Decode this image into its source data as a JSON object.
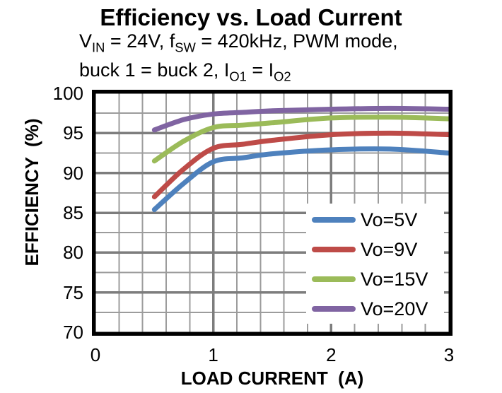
{
  "header": {
    "title": "Efficiency vs. Load Current",
    "subtitle_line1_parts": [
      {
        "t": "V"
      },
      {
        "t": "IN",
        "sub": true
      },
      {
        "t": " = 24V, f"
      },
      {
        "t": "SW",
        "sub": true
      },
      {
        "t": " = 420kHz, PWM mode,"
      }
    ],
    "subtitle_line2_parts": [
      {
        "t": "buck 1 = buck 2, I"
      },
      {
        "t": "O1",
        "sub": true
      },
      {
        "t": " = I"
      },
      {
        "t": "O2",
        "sub": true
      }
    ]
  },
  "chart_data": {
    "type": "line",
    "title": "Efficiency vs. Load Current",
    "subtitle": "VIN = 24V, fSW = 420kHz, PWM mode, buck 1 = buck 2, IO1 = IO2",
    "xlabel": "LOAD CURRENT  (A)",
    "ylabel": "EFFICIENCY  (%)",
    "xlim": [
      0,
      3
    ],
    "ylim": [
      70,
      100
    ],
    "x_ticks": [
      0,
      1,
      2,
      3
    ],
    "y_ticks": [
      100,
      95,
      90,
      85,
      80,
      75,
      70
    ],
    "x_minor_step": 0.2,
    "y_minor_step": 2.5,
    "grid": {
      "on": true,
      "minor_color": "#9C9C9C",
      "major_color": "#7D7D7D",
      "border_color": "#000000",
      "background": "#FFFFFF"
    },
    "legend": {
      "position": "lower-right",
      "border": "none"
    },
    "series": [
      {
        "name": "Vo=5V",
        "color": "#4E81BD",
        "points": [
          [
            0.5,
            85.4
          ],
          [
            0.75,
            88.7
          ],
          [
            1.0,
            91.4
          ],
          [
            1.25,
            91.9
          ],
          [
            1.5,
            92.4
          ],
          [
            2.0,
            92.9
          ],
          [
            2.5,
            93.0
          ],
          [
            3.0,
            92.5
          ]
        ]
      },
      {
        "name": "Vo=9V",
        "color": "#BE4B48",
        "points": [
          [
            0.5,
            87.0
          ],
          [
            0.75,
            90.5
          ],
          [
            1.0,
            93.1
          ],
          [
            1.25,
            93.6
          ],
          [
            1.5,
            94.1
          ],
          [
            2.0,
            94.8
          ],
          [
            2.5,
            95.0
          ],
          [
            3.0,
            94.8
          ]
        ]
      },
      {
        "name": "Vo=15V",
        "color": "#9BBB59",
        "points": [
          [
            0.5,
            91.5
          ],
          [
            0.75,
            94.0
          ],
          [
            1.0,
            95.7
          ],
          [
            1.25,
            96.0
          ],
          [
            1.5,
            96.3
          ],
          [
            2.0,
            96.9
          ],
          [
            2.5,
            97.0
          ],
          [
            3.0,
            96.8
          ]
        ]
      },
      {
        "name": "Vo=20V",
        "color": "#8064A2",
        "points": [
          [
            0.5,
            95.4
          ],
          [
            0.75,
            96.7
          ],
          [
            1.0,
            97.4
          ],
          [
            1.25,
            97.6
          ],
          [
            1.5,
            97.8
          ],
          [
            2.0,
            98.0
          ],
          [
            2.5,
            98.1
          ],
          [
            3.0,
            98.0
          ]
        ]
      }
    ]
  }
}
